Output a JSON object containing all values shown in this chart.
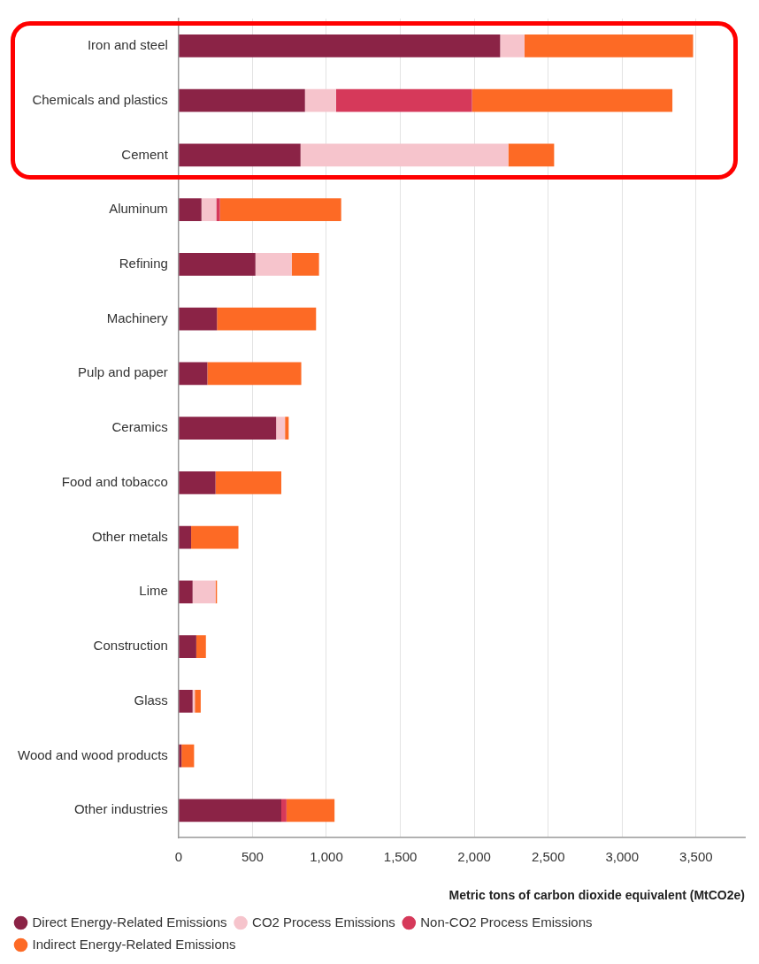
{
  "chart_data": {
    "type": "bar",
    "orientation": "horizontal",
    "stacked": true,
    "xlabel": "Metric tons of carbon dioxide equivalent (MtCO2e)",
    "categories": [
      "Iron and steel",
      "Chemicals and plastics",
      "Cement",
      "Aluminum",
      "Refining",
      "Machinery",
      "Pulp and paper",
      "Ceramics",
      "Food and tobacco",
      "Other metals",
      "Lime",
      "Construction",
      "Glass",
      "Wood and wood products",
      "Other industries"
    ],
    "series": [
      {
        "name": "Direct Energy-Related Emissions",
        "color": "#8b2346",
        "values": [
          2175,
          855,
          825,
          155,
          520,
          260,
          195,
          660,
          250,
          85,
          95,
          120,
          95,
          20,
          695
        ]
      },
      {
        "name": "CO2 Process Emissions",
        "color": "#f6c4cc",
        "values": [
          165,
          210,
          1405,
          100,
          245,
          null,
          null,
          60,
          null,
          null,
          155,
          null,
          15,
          null,
          null
        ]
      },
      {
        "name": "Non-CO2 Process Emissions",
        "color": "#d6395a",
        "values": [
          null,
          920,
          null,
          25,
          null,
          null,
          null,
          null,
          null,
          null,
          null,
          null,
          null,
          null,
          35
        ]
      },
      {
        "name": "Indirect Energy-Related Emissions",
        "color": "#fd6a25",
        "values": [
          1140,
          1355,
          310,
          820,
          185,
          670,
          635,
          25,
          445,
          320,
          10,
          65,
          40,
          85,
          325
        ]
      }
    ],
    "xlim": [
      0,
      3830
    ],
    "xticks": [
      {
        "value": 0,
        "label": "0"
      },
      {
        "value": 500,
        "label": "500"
      },
      {
        "value": 1000,
        "label": "1,000"
      },
      {
        "value": 1500,
        "label": "1,500"
      },
      {
        "value": 2000,
        "label": "2,000"
      },
      {
        "value": 2500,
        "label": "2,500"
      },
      {
        "value": 3000,
        "label": "3,000"
      },
      {
        "value": 3500,
        "label": "3,500"
      }
    ],
    "grid": "x",
    "legend": "bottom left",
    "marker": "circle"
  }
}
